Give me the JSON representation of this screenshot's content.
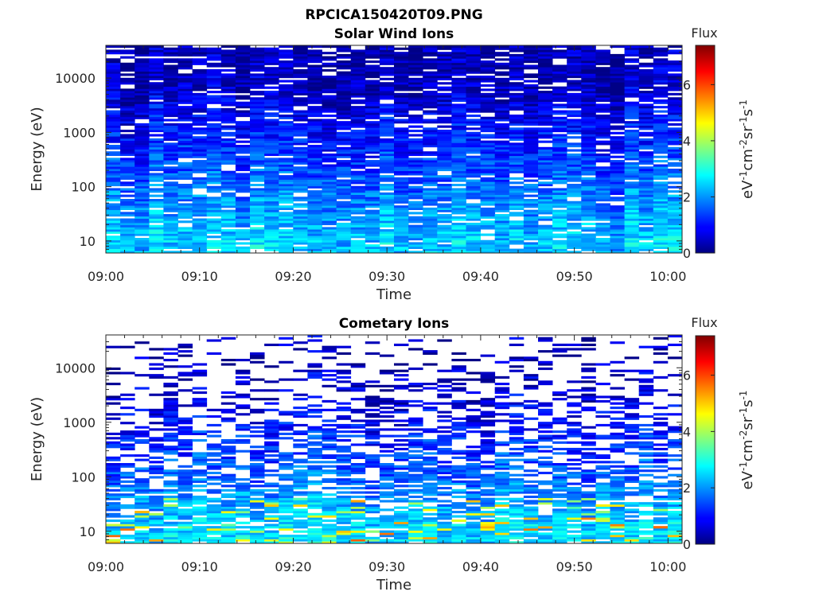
{
  "figure_title": "RPCICA150420T09.PNG",
  "chart_data": [
    {
      "type": "heatmap",
      "title": "Solar Wind Ions",
      "xlabel": "Time",
      "ylabel": "Energy (eV)",
      "x_ticks": [
        "09:00",
        "09:10",
        "09:20",
        "09:30",
        "09:40",
        "09:50",
        "10:00"
      ],
      "xlim_minutes": [
        0,
        61.5
      ],
      "y_scale": "log",
      "y_ticks": [
        "10",
        "100",
        "1000",
        "10000"
      ],
      "ylim": [
        6,
        40000
      ],
      "time_bins": 40,
      "energy_bins": 96,
      "colorbar": {
        "title": "Flux",
        "unit": "eV-1cm-2sr-1s-1",
        "ticks": [
          "0",
          "2",
          "4",
          "6"
        ],
        "range": [
          0,
          7.4
        ],
        "colormap": "jet"
      },
      "flux_profile": {
        "energy_ev": [
          10,
          100,
          1000,
          10000,
          40000
        ],
        "typical_flux": [
          2.4,
          1.7,
          1.0,
          0.4,
          0.35
        ],
        "empty_fraction": 0.12
      }
    },
    {
      "type": "heatmap",
      "title": "Cometary Ions",
      "xlabel": "Time",
      "ylabel": "Energy (eV)",
      "x_ticks": [
        "09:00",
        "09:10",
        "09:20",
        "09:30",
        "09:40",
        "09:50",
        "10:00"
      ],
      "xlim_minutes": [
        0,
        61.5
      ],
      "y_scale": "log",
      "y_ticks": [
        "10",
        "100",
        "1000",
        "10000"
      ],
      "ylim": [
        6,
        40000
      ],
      "time_bins": 40,
      "energy_bins": 96,
      "colorbar": {
        "title": "Flux",
        "unit": "eV-1cm-2sr-1s-1",
        "ticks": [
          "0",
          "2",
          "4",
          "6"
        ],
        "range": [
          0,
          7.4
        ],
        "colormap": "jet"
      },
      "flux_profile": {
        "energy_ev": [
          10,
          100,
          1000,
          10000,
          40000
        ],
        "typical_flux": [
          2.6,
          1.7,
          1.0,
          0.5,
          0.4
        ],
        "empty_fraction": [
          0.12,
          0.35,
          0.55,
          0.8,
          0.85
        ]
      }
    }
  ]
}
